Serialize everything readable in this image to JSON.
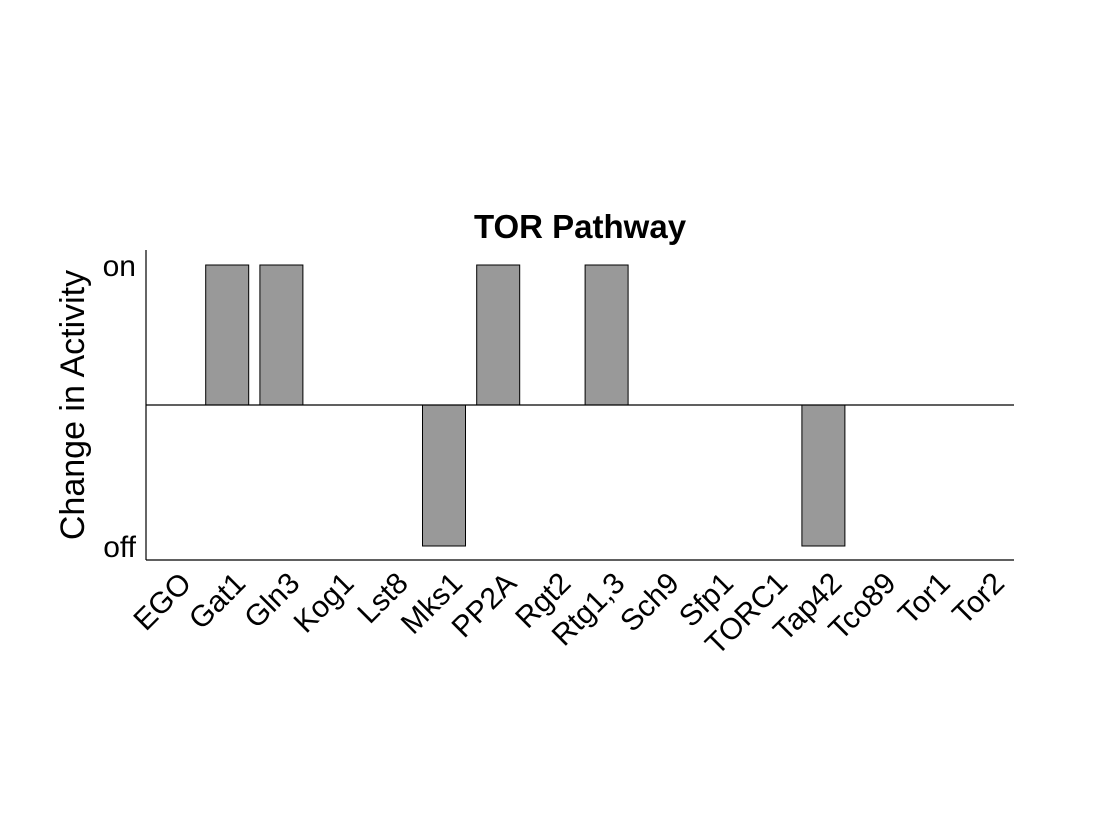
{
  "chart_data": {
    "type": "bar",
    "title": "TOR Pathway",
    "ylabel": "Change in Activity",
    "xlabel": "",
    "categories": [
      "EGO",
      "Gat1",
      "Gln3",
      "Kog1",
      "Lst8",
      "Mks1",
      "PP2A",
      "Rgt2",
      "Rtg1,3",
      "Sch9",
      "Sfp1",
      "TORC1",
      "Tap42",
      "Tco89",
      "Tor1",
      "Tor2"
    ],
    "values": [
      0,
      1,
      1,
      0,
      0,
      -1,
      1,
      0,
      1,
      0,
      0,
      0,
      -1,
      0,
      0,
      0
    ],
    "yticks": [
      {
        "value": 1,
        "label": "on"
      },
      {
        "value": -1,
        "label": "off"
      }
    ],
    "ylim": [
      -1.1,
      1.1
    ],
    "grid": false,
    "bar_color": "#999999"
  }
}
